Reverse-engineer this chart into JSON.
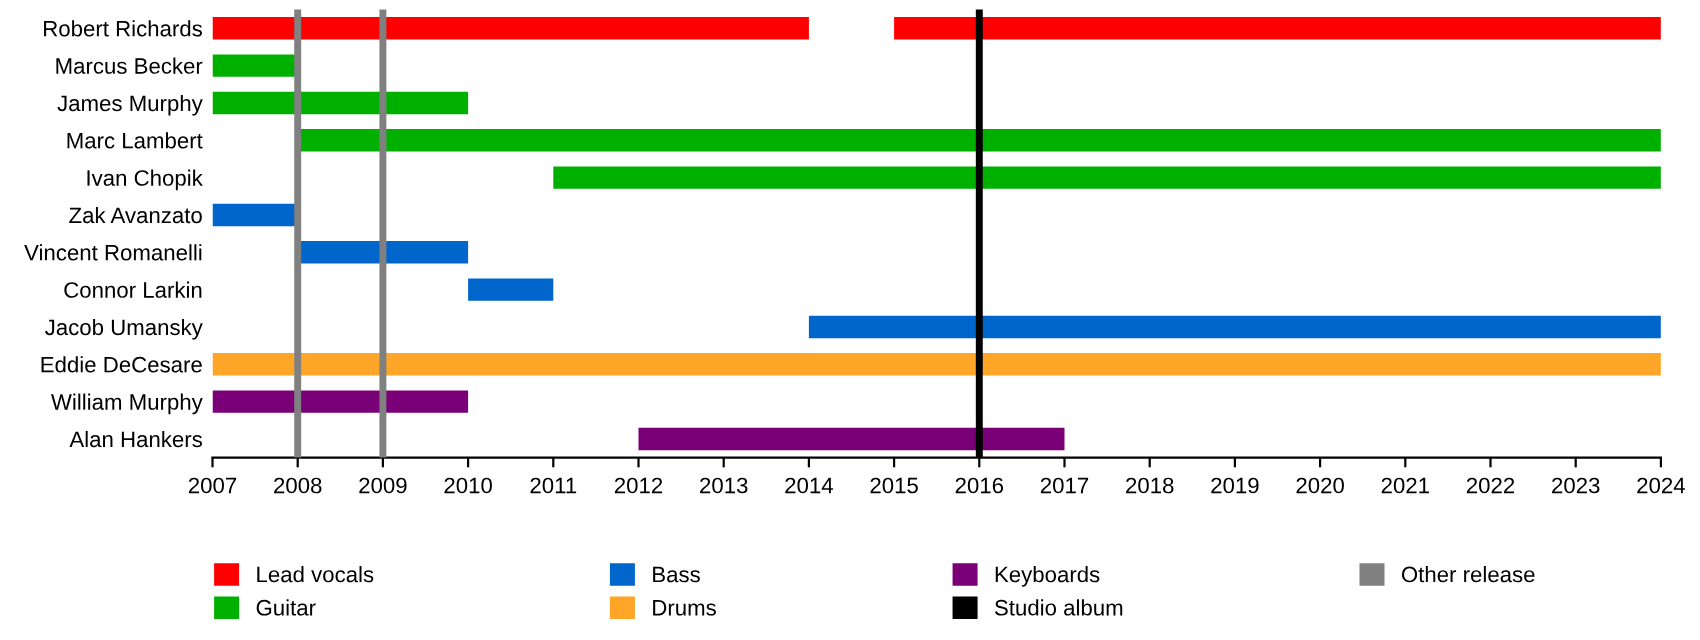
{
  "chart_data": {
    "type": "bar",
    "orientation": "horizontal",
    "categories": [
      "Robert Richards",
      "Marcus Becker",
      "James Murphy",
      "Marc Lambert",
      "Ivan Chopik",
      "Zak Avanzato",
      "Vincent Romanelli",
      "Connor Larkin",
      "Jacob Umansky",
      "Eddie DeCesare",
      "William Murphy",
      "Alan Hankers"
    ],
    "series": [
      {
        "name": "Lead vocals",
        "color": "#ff0000",
        "base": [
          2007,
          null,
          null,
          null,
          null,
          null,
          null,
          null,
          null,
          null,
          null,
          null
        ],
        "values": [
          7,
          null,
          null,
          null,
          null,
          null,
          null,
          null,
          null,
          null,
          null,
          null
        ]
      },
      {
        "name": "Guitar",
        "color": "#00b000",
        "base": [
          null,
          2007,
          2007,
          2008,
          2011,
          null,
          null,
          null,
          null,
          null,
          null,
          null
        ],
        "values": [
          null,
          1,
          3,
          16,
          13,
          null,
          null,
          null,
          null,
          null,
          null,
          null
        ]
      },
      {
        "name": "Bass",
        "color": "#0066cc",
        "base": [
          null,
          null,
          null,
          null,
          null,
          2007,
          2008,
          2010,
          2014,
          null,
          null,
          null
        ],
        "values": [
          null,
          null,
          null,
          null,
          null,
          1,
          2,
          1,
          10,
          null,
          null,
          null
        ]
      },
      {
        "name": "Drums",
        "color": "#ffa528",
        "base": [
          null,
          null,
          null,
          null,
          null,
          null,
          null,
          null,
          null,
          2007,
          null,
          null
        ],
        "values": [
          null,
          null,
          null,
          null,
          null,
          null,
          null,
          null,
          null,
          17,
          null,
          null
        ]
      },
      {
        "name": "Keyboards",
        "color": "#7a0078",
        "base": [
          null,
          null,
          null,
          null,
          null,
          null,
          null,
          null,
          null,
          null,
          2007,
          2012
        ],
        "values": [
          null,
          null,
          null,
          null,
          null,
          null,
          null,
          null,
          null,
          null,
          3,
          5
        ]
      },
      {
        "color": "#ff0000",
        "base": [
          2015,
          null,
          null,
          null,
          null,
          null,
          null,
          null,
          null,
          null,
          null,
          null
        ],
        "values": [
          9,
          null,
          null,
          null,
          null,
          null,
          null,
          null,
          null,
          null,
          null,
          null
        ]
      }
    ],
    "ref_lines": [
      {
        "axis": "x",
        "value": 2016,
        "label": "Studio album",
        "color": "#000000"
      },
      {
        "axis": "x",
        "value": 2008,
        "label": "Other release",
        "color": "#808080"
      },
      {
        "axis": "x",
        "value": 2009,
        "label": null,
        "color": "#808080"
      }
    ],
    "xlim": [
      2007,
      2024
    ],
    "xticks": [
      2007,
      2008,
      2009,
      2010,
      2011,
      2012,
      2013,
      2014,
      2015,
      2016,
      2017,
      2018,
      2019,
      2020,
      2021,
      2022,
      2023,
      2024
    ],
    "grid": false,
    "legend": "bottom"
  }
}
